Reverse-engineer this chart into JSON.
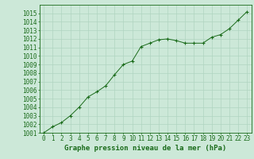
{
  "x": [
    0,
    1,
    2,
    3,
    4,
    5,
    6,
    7,
    8,
    9,
    10,
    11,
    12,
    13,
    14,
    15,
    16,
    17,
    18,
    19,
    20,
    21,
    22,
    23
  ],
  "y": [
    1001.0,
    1001.7,
    1002.2,
    1003.0,
    1004.0,
    1005.2,
    1005.8,
    1006.5,
    1007.8,
    1009.0,
    1009.4,
    1011.1,
    1011.5,
    1011.9,
    1012.0,
    1011.8,
    1011.5,
    1011.5,
    1011.5,
    1012.2,
    1012.5,
    1013.2,
    1014.2,
    1015.2
  ],
  "ylim": [
    1001,
    1016
  ],
  "xlim": [
    -0.5,
    23.5
  ],
  "yticks": [
    1001,
    1002,
    1003,
    1004,
    1005,
    1006,
    1007,
    1008,
    1009,
    1010,
    1011,
    1012,
    1013,
    1014,
    1015
  ],
  "xticks": [
    0,
    1,
    2,
    3,
    4,
    5,
    6,
    7,
    8,
    9,
    10,
    11,
    12,
    13,
    14,
    15,
    16,
    17,
    18,
    19,
    20,
    21,
    22,
    23
  ],
  "xlabel": "Graphe pression niveau de la mer (hPa)",
  "line_color": "#1a6b1a",
  "marker": "+",
  "bg_color": "#cce8d8",
  "grid_color": "#b0d4c0",
  "tick_color": "#1a6b1a",
  "axis_color": "#1a6b1a",
  "font_size_tick": 5.5,
  "font_size_label": 6.5
}
